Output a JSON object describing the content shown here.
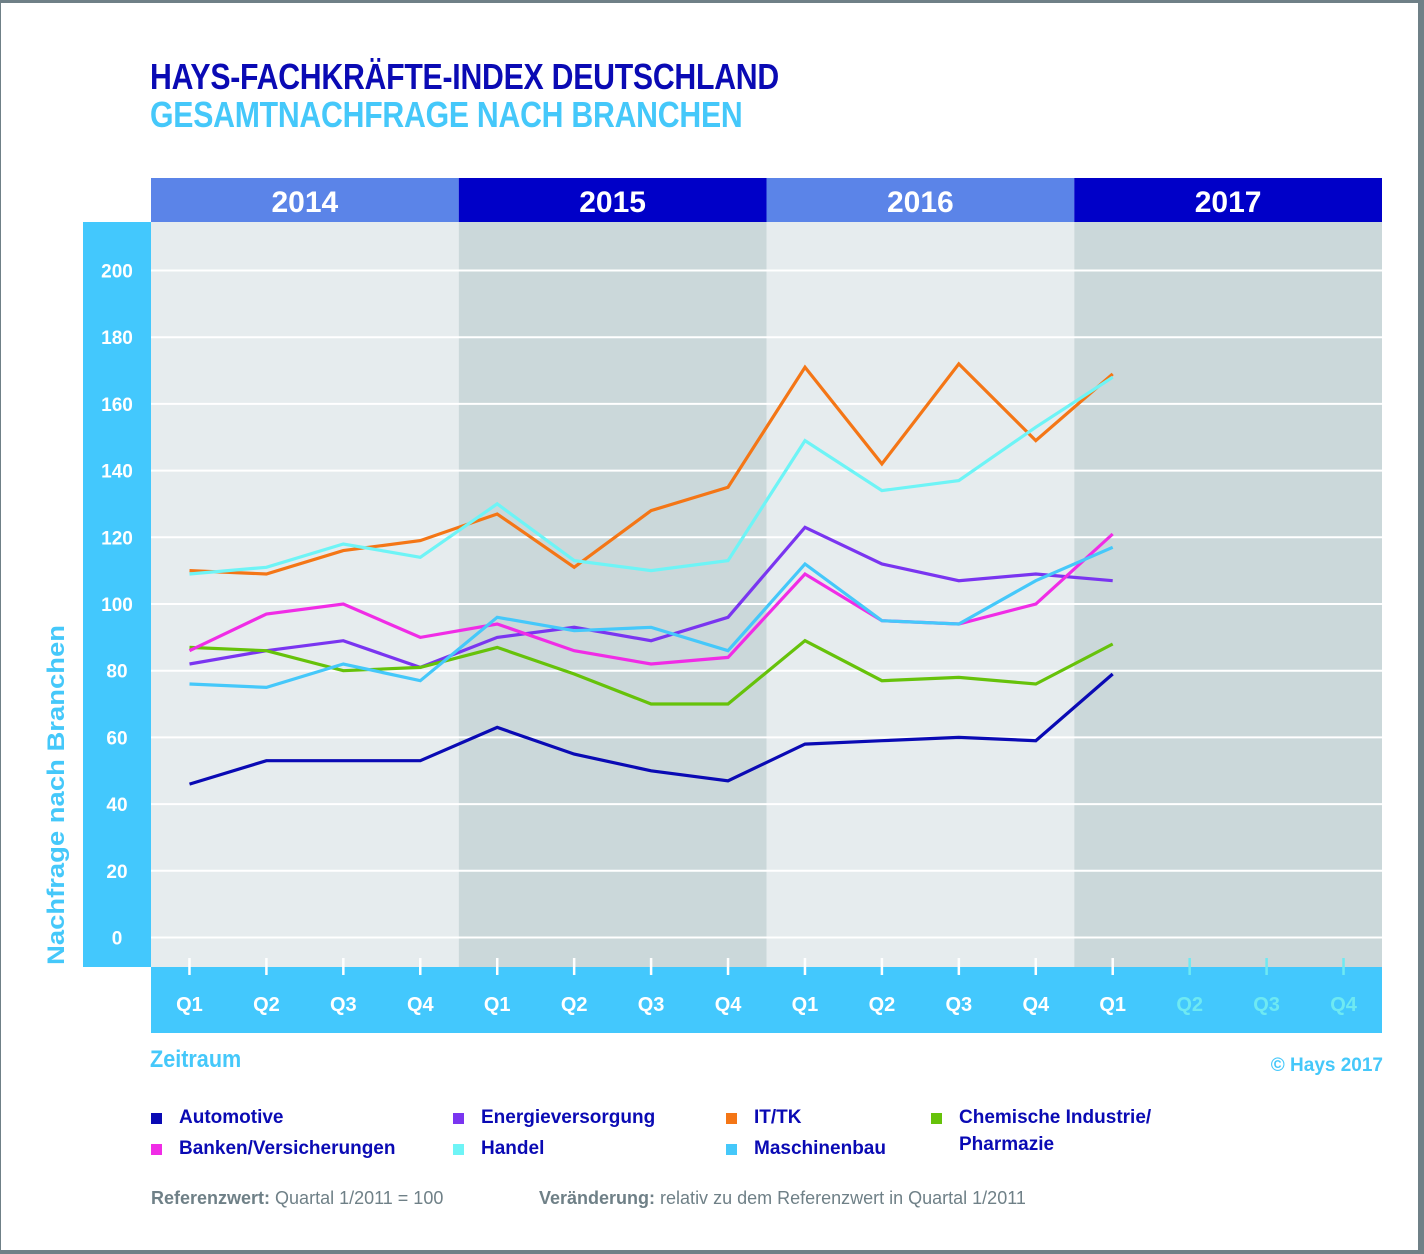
{
  "header": {
    "title": "HAYS-FACHKRÄFTE-INDEX DEUTSCHLAND",
    "subtitle": "GESAMTNACHFRAGE NACH BRANCHEN"
  },
  "colors": {
    "title": "#0a0ab4",
    "accent": "#45c8fa",
    "year_band_light": "#5b84e8",
    "year_band_dark": "#0000c8",
    "plot_bg_light": "#e6ecee",
    "plot_bg_dark": "#cbd8da",
    "axis_band": "#43c8fd",
    "future_tick": "#6ee9f2",
    "footnote": "#6f8087"
  },
  "chart_data": {
    "type": "line",
    "title": "HAYS-FACHKRÄFTE-INDEX DEUTSCHLAND",
    "subtitle": "GESAMTNACHFRAGE NACH BRANCHEN",
    "xlabel": "Zeitraum",
    "ylabel": "Nachfrage nach Branchen",
    "ylim": [
      0,
      200
    ],
    "yticks": [
      0,
      20,
      40,
      60,
      80,
      100,
      120,
      140,
      160,
      180,
      200
    ],
    "grid": true,
    "years": [
      "2014",
      "2015",
      "2016",
      "2017"
    ],
    "x": [
      "Q1",
      "Q2",
      "Q3",
      "Q4",
      "Q1",
      "Q2",
      "Q3",
      "Q4",
      "Q1",
      "Q2",
      "Q3",
      "Q4",
      "Q1",
      "Q2",
      "Q3",
      "Q4"
    ],
    "x_future_from_index": 13,
    "legend_position": "bottom",
    "series": [
      {
        "name": "Automotive",
        "color": "#0a0ab4",
        "values": [
          46,
          53,
          53,
          53,
          63,
          55,
          50,
          47,
          58,
          59,
          60,
          59,
          79
        ]
      },
      {
        "name": "Energieversorgung",
        "color": "#7a35f0",
        "values": [
          82,
          86,
          89,
          81,
          90,
          93,
          89,
          96,
          123,
          112,
          107,
          109,
          107
        ]
      },
      {
        "name": "IT/TK",
        "color": "#f47616",
        "values": [
          110,
          109,
          116,
          119,
          127,
          111,
          128,
          135,
          171,
          142,
          172,
          149,
          169
        ]
      },
      {
        "name": "Chemische Industrie/ Pharmazie",
        "color": "#66c20a",
        "values": [
          87,
          86,
          80,
          81,
          87,
          79,
          70,
          70,
          89,
          77,
          78,
          76,
          88
        ]
      },
      {
        "name": "Banken/Versicherungen",
        "color": "#f02ce6",
        "values": [
          86,
          97,
          100,
          90,
          94,
          86,
          82,
          84,
          109,
          95,
          94,
          100,
          121
        ]
      },
      {
        "name": "Handel",
        "color": "#6ef4f6",
        "values": [
          109,
          111,
          118,
          114,
          130,
          113,
          110,
          113,
          149,
          134,
          137,
          153,
          168
        ]
      },
      {
        "name": "Maschinenbau",
        "color": "#45c8fa",
        "values": [
          76,
          75,
          82,
          77,
          96,
          92,
          93,
          86,
          112,
          95,
          94,
          107,
          117
        ]
      }
    ]
  },
  "footer": {
    "copyright": "© Hays 2017",
    "reference_label": "Referenzwert:",
    "reference_value": "Quartal 1/2011 = 100",
    "change_label": "Veränderung:",
    "change_value": "relativ zu dem Referenzwert in Quartal 1/2011"
  }
}
